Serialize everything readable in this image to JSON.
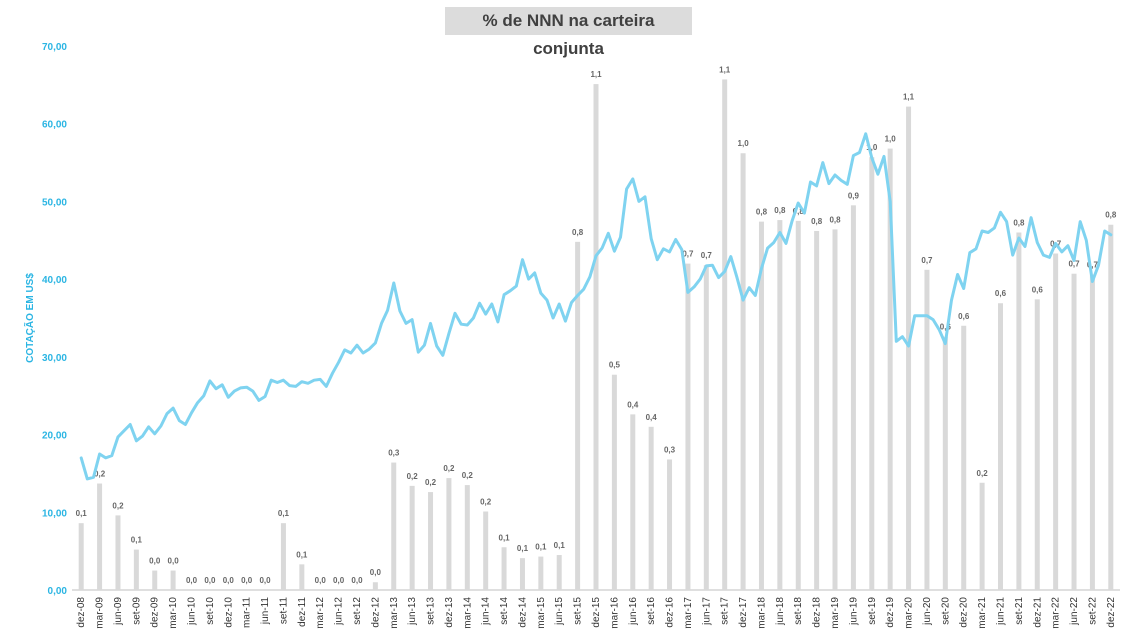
{
  "chart_data": {
    "type": "bar+line",
    "title": "% de NNN na carteira conjunta",
    "ylabel": "COTAÇÃO EM US$",
    "ylim": [
      0,
      70
    ],
    "yticks": [
      "0,00",
      "10,00",
      "20,00",
      "30,00",
      "40,00",
      "50,00",
      "60,00",
      "70,00"
    ],
    "grid": false,
    "bar_color": "#d9d9d9",
    "line_color": "#7fd3f0",
    "axis_color": "#2bb5e3",
    "x_labels": [
      "dez-08",
      "mar-09",
      "jun-09",
      "set-09",
      "dez-09",
      "mar-10",
      "jun-10",
      "set-10",
      "dez-10",
      "mar-11",
      "jun-11",
      "set-11",
      "dez-11",
      "mar-12",
      "jun-12",
      "set-12",
      "dez-12",
      "mar-13",
      "jun-13",
      "set-13",
      "dez-13",
      "mar-14",
      "jun-14",
      "set-14",
      "dez-14",
      "mar-15",
      "jun-15",
      "set-15",
      "dez-15",
      "mar-16",
      "jun-16",
      "set-16",
      "dez-16",
      "mar-17",
      "jun-17",
      "set-17",
      "dez-17",
      "mar-18",
      "jun-18",
      "set-18",
      "dez-18",
      "mar-19",
      "jun-19",
      "set-19",
      "dez-19",
      "mar-20",
      "jun-20",
      "set-20",
      "dez-20",
      "mar-21",
      "jun-21",
      "set-21",
      "dez-21",
      "mar-22",
      "jun-22",
      "set-22",
      "dez-22"
    ],
    "bars": {
      "name": "% de NNN na carteira conjunta",
      "values": [
        8.6,
        13.7,
        9.6,
        5.2,
        2.5,
        2.5,
        0,
        0,
        0,
        0,
        0,
        8.6,
        3.3,
        0,
        0,
        0,
        1.0,
        16.4,
        13.4,
        12.6,
        14.4,
        13.5,
        10.1,
        5.5,
        4.1,
        4.3,
        4.5,
        44.8,
        65.1,
        27.7,
        22.6,
        21.0,
        16.8,
        42.0,
        41.8,
        65.7,
        56.2,
        47.4,
        47.6,
        47.5,
        46.2,
        46.4,
        49.5,
        55.7,
        56.8,
        62.2,
        41.2,
        32.6,
        34.0,
        13.8,
        36.9,
        46.0,
        37.4,
        43.3,
        40.7,
        40.6,
        47.0
      ],
      "labels": [
        "0,1",
        "0,2",
        "0,2",
        "0,1",
        "0,0",
        "0,0",
        "0,0",
        "0,0",
        "0,0",
        "0,0",
        "0,0",
        "0,1",
        "0,1",
        "0,0",
        "0,0",
        "0,0",
        "0,0",
        "0,3",
        "0,2",
        "0,2",
        "0,2",
        "0,2",
        "0,2",
        "0,1",
        "0,1",
        "0,1",
        "0,1",
        "0,8",
        "1,1",
        "0,5",
        "0,4",
        "0,4",
        "0,3",
        "0,7",
        "0,7",
        "1,1",
        "1,0",
        "0,8",
        "0,8",
        "0,8",
        "0,8",
        "0,8",
        "0,9",
        "1,0",
        "1,0",
        "1,1",
        "0,7",
        "0,6",
        "0,6",
        "0,2",
        "0,6",
        "0,8",
        "0,6",
        "0,7",
        "0,7",
        "0,7",
        "0,8"
      ]
    },
    "line": {
      "name": "Cotação em US$",
      "values": [
        17.0,
        14.3,
        14.5,
        17.5,
        17.0,
        17.3,
        19.7,
        20.5,
        21.3,
        19.2,
        19.8,
        21.0,
        20.1,
        21.1,
        22.7,
        23.4,
        21.8,
        21.3,
        22.8,
        24.1,
        25.0,
        26.9,
        25.9,
        26.4,
        24.8,
        25.6,
        26.0,
        26.1,
        25.6,
        24.4,
        24.9,
        27.0,
        26.7,
        27.0,
        26.3,
        26.2,
        26.8,
        26.6,
        27.0,
        27.1,
        26.2,
        27.9,
        29.3,
        30.9,
        30.5,
        31.5,
        30.5,
        31.0,
        31.8,
        34.3,
        36.0,
        39.5,
        35.9,
        34.3,
        34.8,
        30.6,
        31.5,
        34.3,
        31.4,
        30.2,
        33.0,
        35.6,
        34.2,
        34.1,
        35.0,
        36.9,
        35.5,
        36.8,
        34.5,
        38.0,
        38.5,
        39.1,
        42.5,
        40.0,
        40.8,
        38.2,
        37.3,
        35.0,
        36.8,
        34.6,
        37.0,
        37.9,
        38.7,
        40.3,
        43.0,
        44.0,
        45.9,
        43.6,
        45.4,
        51.6,
        52.9,
        50.0,
        50.6,
        45.2,
        42.5,
        43.9,
        43.5,
        45.1,
        43.8,
        38.3,
        39.0,
        40.0,
        41.7,
        41.8,
        40.2,
        41.0,
        42.9,
        40.2,
        37.3,
        38.9,
        37.9,
        41.4,
        44.0,
        44.7,
        46.0,
        44.6,
        47.5,
        49.8,
        48.5,
        52.5,
        52.0,
        55.0,
        52.3,
        53.4,
        52.7,
        52.2,
        55.9,
        56.3,
        58.7,
        55.6,
        53.5,
        55.8,
        50.0,
        32.0,
        32.6,
        31.4,
        35.3,
        35.3,
        35.3,
        34.8,
        33.5,
        31.7,
        37.3,
        40.6,
        38.8,
        43.4,
        43.9,
        46.2,
        46.0,
        46.6,
        48.6,
        47.4,
        43.1,
        45.3,
        44.2,
        47.9,
        44.7,
        43.1,
        42.8,
        44.6,
        43.5,
        44.3,
        42.4,
        47.4,
        45.0,
        39.7,
        41.8,
        46.2,
        45.7
      ]
    }
  }
}
